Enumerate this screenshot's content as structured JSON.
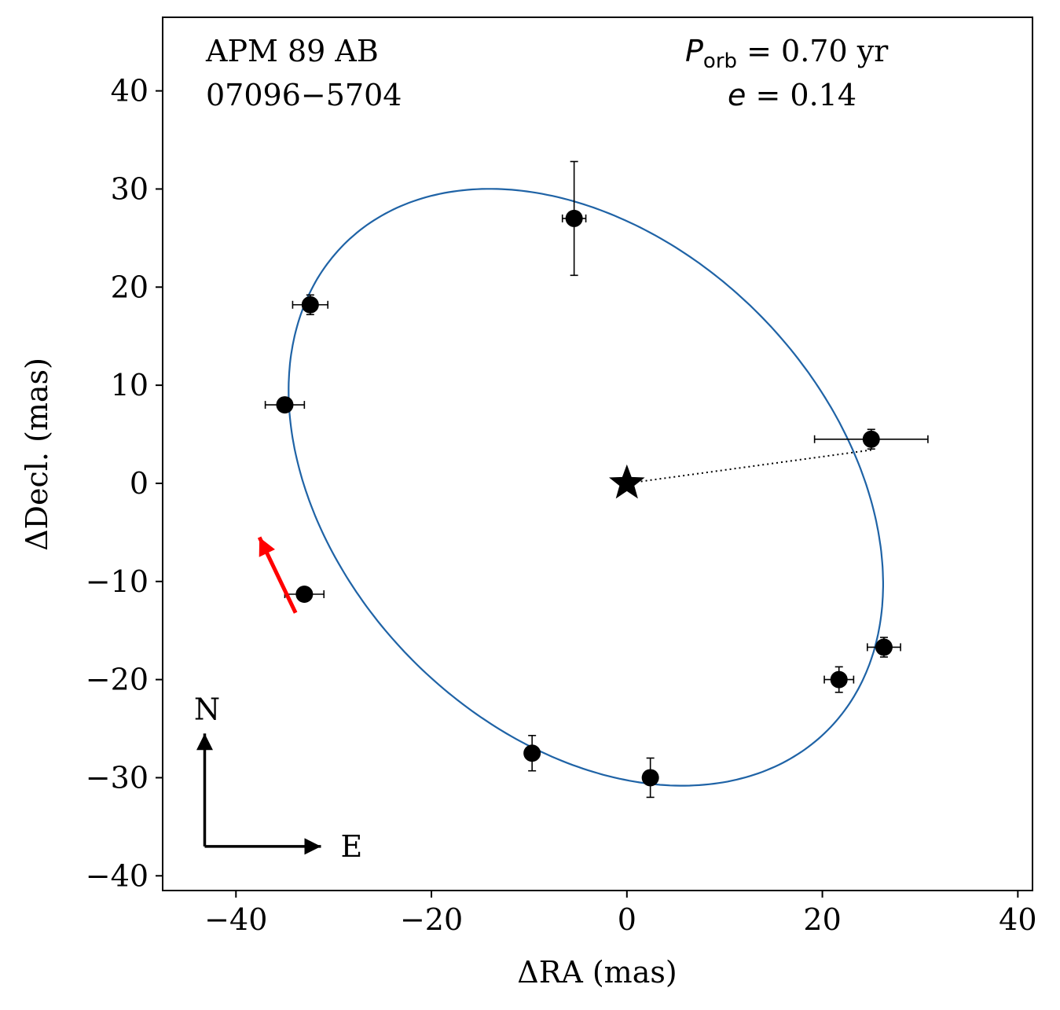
{
  "chart_data": {
    "type": "scatter",
    "title_lines": [
      "APM 89 AB",
      "07096−5704"
    ],
    "period_label": {
      "symbol": "P",
      "subscript": "orb",
      "text": " =  0.70 yr"
    },
    "eccentricity_label": {
      "symbol": "e",
      "text": " = 0.14"
    },
    "xlabel": "ΔRA  (mas)",
    "ylabel": "ΔDecl.  (mas)",
    "xlim": [
      -47.5,
      41.5
    ],
    "ylim": [
      -41.5,
      47.5
    ],
    "xticks": [
      -40,
      -20,
      0,
      20,
      40
    ],
    "yticks": [
      -40,
      -30,
      -20,
      -10,
      0,
      10,
      20,
      30,
      40
    ],
    "xtick_labels": [
      "−40",
      "−20",
      "0",
      "20",
      "40"
    ],
    "ytick_labels": [
      "−40",
      "−30",
      "−20",
      "−10",
      "0",
      "10",
      "20",
      "30",
      "40"
    ],
    "orbit": {
      "color": "#1f63a6",
      "center": [
        -4.2,
        -0.4
      ],
      "semi_axes": [
        35.0,
        25.0
      ],
      "angle_deg": -45.0
    },
    "primary": {
      "x": 0.0,
      "y": 0.0,
      "marker": "star"
    },
    "points": [
      {
        "x": -5.4,
        "y": 27.0,
        "xerr": 1.2,
        "yerr": 5.8
      },
      {
        "x": -32.4,
        "y": 18.2,
        "xerr": 1.8,
        "yerr": 1.0
      },
      {
        "x": -35.0,
        "y": 8.0,
        "xerr": 2.0,
        "yerr": 0.5
      },
      {
        "x": 25.0,
        "y": 4.5,
        "xerr": 5.8,
        "yerr": 1.0
      },
      {
        "x": -33.0,
        "y": -11.3,
        "xerr": 2.0,
        "yerr": 0.5
      },
      {
        "x": 26.3,
        "y": -16.7,
        "xerr": 1.7,
        "yerr": 1.0
      },
      {
        "x": 21.7,
        "y": -20.0,
        "xerr": 1.5,
        "yerr": 1.3
      },
      {
        "x": -9.7,
        "y": -27.5,
        "xerr": 0.5,
        "yerr": 1.8
      },
      {
        "x": 2.4,
        "y": -30.0,
        "xerr": 0.5,
        "yerr": 2.0
      }
    ],
    "periastron_line": {
      "from": [
        0.0,
        0.0
      ],
      "to": [
        25.0,
        3.4
      ],
      "style": "dotted"
    },
    "direction_arrow": {
      "from": [
        -33.9,
        -13.2
      ],
      "to": [
        -37.6,
        -5.5
      ],
      "color": "#ff0000"
    },
    "compass": {
      "origin": [
        -43.2,
        -37.0
      ],
      "north_end": [
        -43.2,
        -25.5
      ],
      "east_end": [
        -31.3,
        -37.0
      ],
      "north_label": "N",
      "east_label": "E"
    }
  }
}
